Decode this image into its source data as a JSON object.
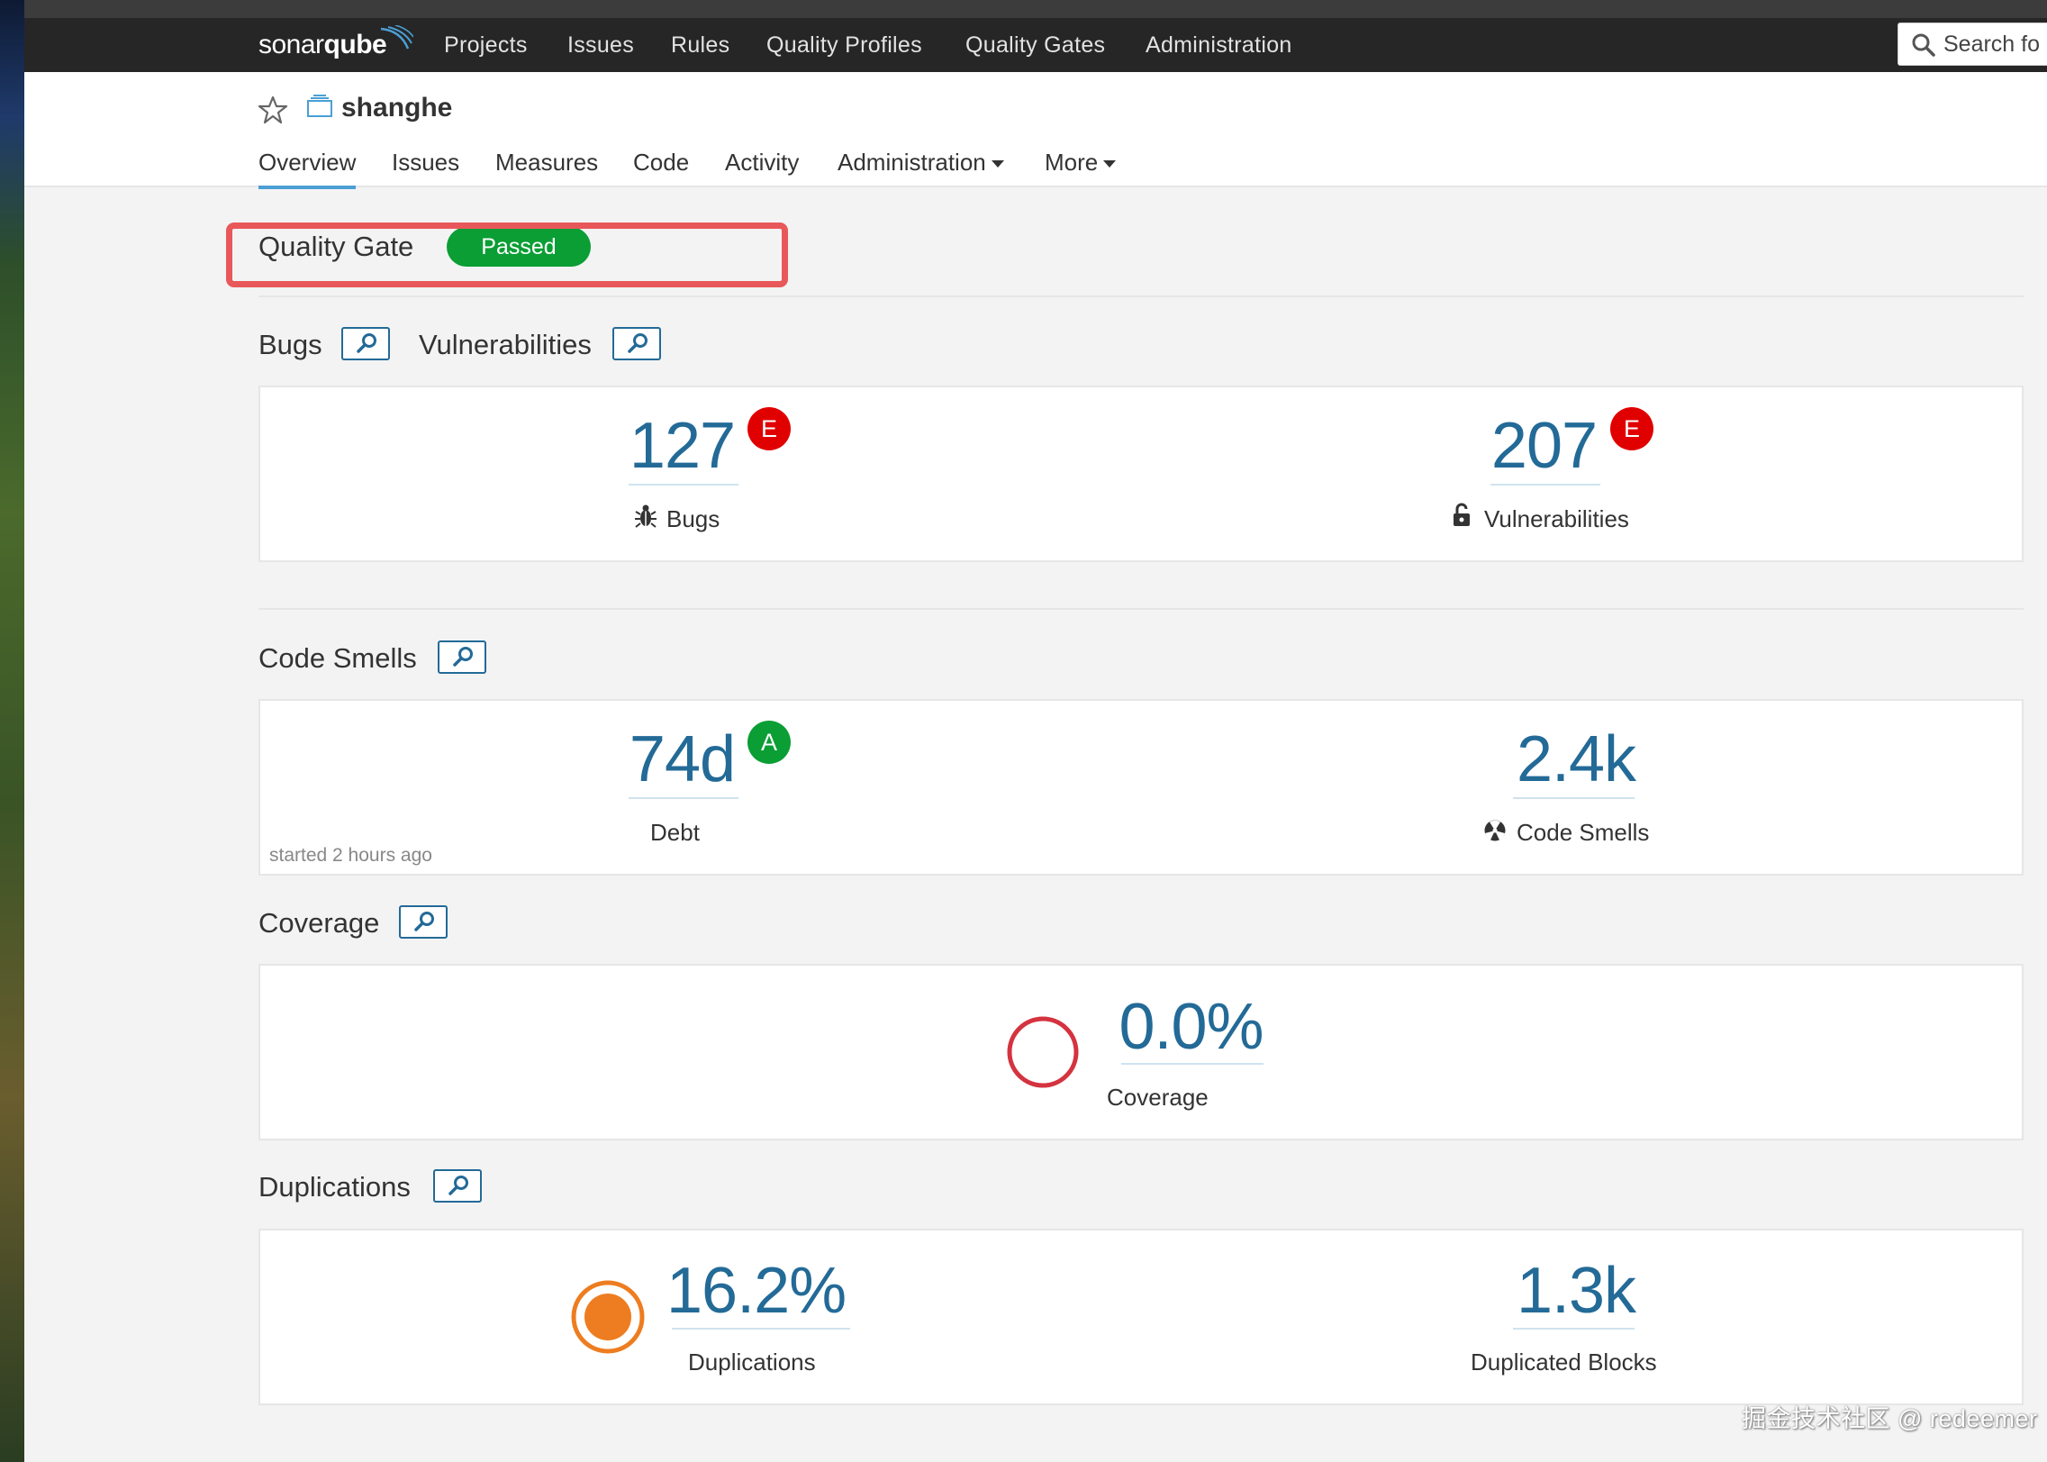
{
  "nav": {
    "logo_light": "sonar",
    "logo_bold": "qube",
    "links": [
      "Projects",
      "Issues",
      "Rules",
      "Quality Profiles",
      "Quality Gates",
      "Administration"
    ],
    "search_placeholder": "Search fo"
  },
  "project": {
    "name": "shanghe",
    "tabs": [
      "Overview",
      "Issues",
      "Measures",
      "Code",
      "Activity",
      "Administration",
      "More"
    ],
    "active_tab": "Overview"
  },
  "quality_gate": {
    "label": "Quality Gate",
    "status": "Passed",
    "status_color": "#0a9e34",
    "highlight_color": "#e8585a"
  },
  "bugs_vulns": {
    "title_bugs": "Bugs",
    "title_vulns": "Vulnerabilities",
    "bugs": {
      "value": "127",
      "rating": "E",
      "label": "Bugs",
      "rating_color": "#e00000"
    },
    "vulns": {
      "value": "207",
      "rating": "E",
      "label": "Vulnerabilities",
      "rating_color": "#e00000"
    }
  },
  "code_smells": {
    "title": "Code Smells",
    "debt": {
      "value": "74d",
      "rating": "A",
      "label": "Debt",
      "rating_color": "#0a9e34"
    },
    "smells": {
      "value": "2.4k",
      "label": "Code Smells"
    },
    "started": "started 2 hours ago"
  },
  "coverage": {
    "title": "Coverage",
    "value": "0.0%",
    "label": "Coverage",
    "ring_color": "#d4333f"
  },
  "duplications": {
    "title": "Duplications",
    "dup": {
      "value": "16.2%",
      "label": "Duplications",
      "ring_color": "#ed7d20"
    },
    "blocks": {
      "value": "1.3k",
      "label": "Duplicated Blocks"
    }
  },
  "watermark": "掘金技术社区 @ redeemer"
}
